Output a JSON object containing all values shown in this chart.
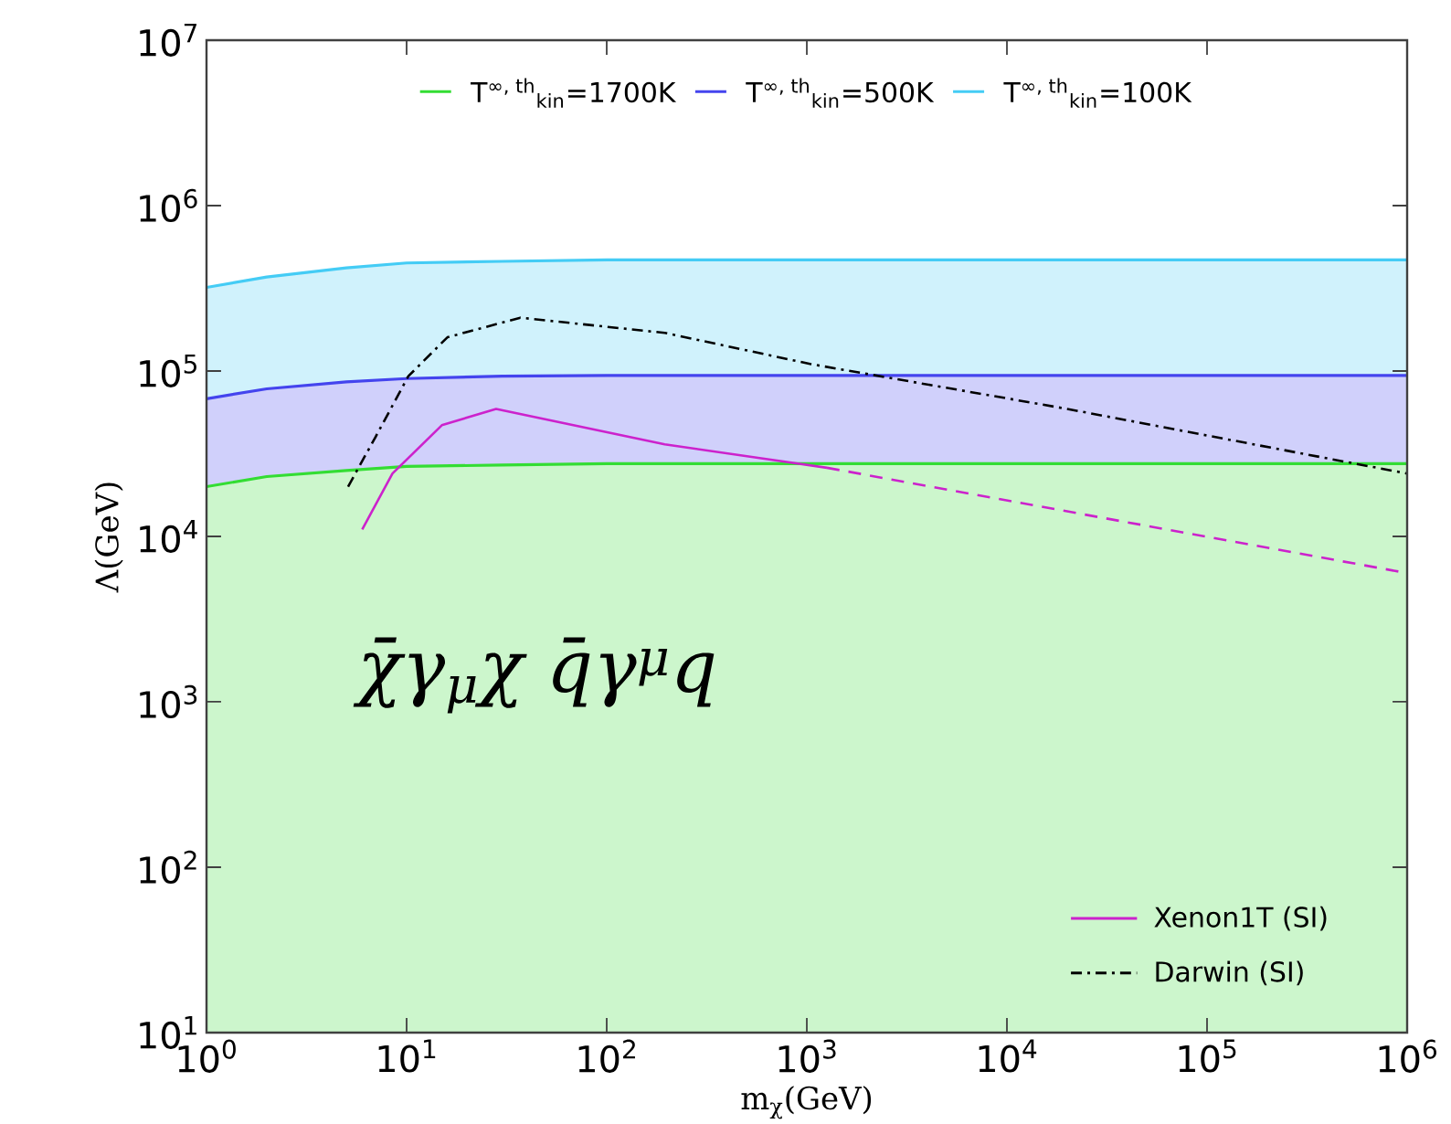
{
  "chart_data": {
    "type": "area",
    "xlabel": "m$_{χ}$(GeV)",
    "ylabel": "Λ(GeV)",
    "log": "xy",
    "xlim": [
      1,
      1000000
    ],
    "ylim": [
      10,
      10000000
    ],
    "xticks": [
      {
        "value": 1,
        "label": "10$^{0}$"
      },
      {
        "value": 10,
        "label": "10$^{1}$"
      },
      {
        "value": 100,
        "label": "10$^{2}$"
      },
      {
        "value": 1000,
        "label": "10$^{3}$"
      },
      {
        "value": 10000,
        "label": "10$^{4}$"
      },
      {
        "value": 100000,
        "label": "10$^{5}$"
      },
      {
        "value": 1000000,
        "label": "10$^{6}$"
      }
    ],
    "yticks": [
      {
        "value": 10,
        "label": "10$^{1}$"
      },
      {
        "value": 100,
        "label": "10$^{2}$"
      },
      {
        "value": 1000,
        "label": "10$^{3}$"
      },
      {
        "value": 10000,
        "label": "10$^{4}$"
      },
      {
        "value": 100000,
        "label": "10$^{5}$"
      },
      {
        "value": 1000000,
        "label": "10$^{6}$"
      },
      {
        "value": 10000000,
        "label": "10$^{7}$"
      }
    ],
    "legend": "top",
    "grid": false,
    "annotations": [
      "χ̄γ$_{μ}$χ q̄γ$^{μ}$q"
    ],
    "series": [
      {
        "name": "T$^{∞, th}$$_{kin}$=100K",
        "color": "#44ccf5",
        "x": [
          1,
          2,
          5,
          10,
          30,
          100,
          1000,
          1000000
        ],
        "values": [
          320000,
          370000,
          420000,
          450000,
          460000,
          470000,
          470000,
          470000
        ]
      },
      {
        "name": "T$^{∞, th}$$_{kin}$=500K",
        "color": "#4444ee",
        "x": [
          1,
          2,
          5,
          10,
          30,
          100,
          1000,
          1000000
        ],
        "values": [
          68000,
          78000,
          86000,
          90000,
          93000,
          94000,
          94000,
          94000
        ]
      },
      {
        "name": "T$^{∞, th}$$_{kin}$=1700K",
        "color": "#33dd33",
        "x": [
          1,
          2,
          5,
          10,
          30,
          100,
          1000,
          1000000
        ],
        "values": [
          20000,
          23000,
          25000,
          26500,
          27000,
          27500,
          27500,
          27500
        ]
      },
      {
        "name": "Xenon1T (SI)",
        "color": "#cc22cc",
        "type": "line",
        "line_style": "solid",
        "x": [
          6,
          8.5,
          15,
          28,
          195,
          1260
        ],
        "values": [
          11000,
          24000,
          47000,
          59000,
          36000,
          26000
        ]
      },
      {
        "color": "#cc22cc",
        "type": "line",
        "line_style": "dashed",
        "x": [
          1260,
          1000000
        ],
        "values": [
          26000,
          6000
        ]
      },
      {
        "name": "Darwin (SI)",
        "color": "#000000",
        "type": "line",
        "line_style": "dashdot",
        "x": [
          5.1,
          7,
          10.2,
          16,
          37,
          195,
          1050,
          20000,
          1000000
        ],
        "values": [
          20000,
          40000,
          93000,
          160000,
          210000,
          170000,
          110000,
          59000,
          24000
        ]
      }
    ]
  }
}
